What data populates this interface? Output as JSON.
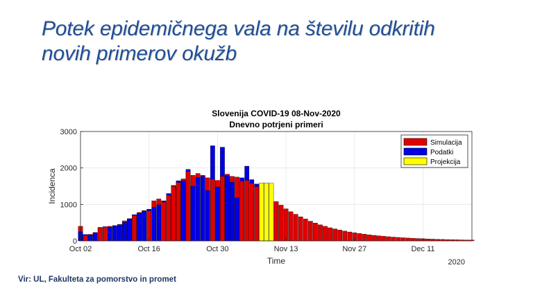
{
  "slide": {
    "title_line1": "Potek epidemičnega vala na številu odkritih",
    "title_line2": "novih primerov okužb",
    "source": "Vir: UL, Fakulteta za pomorstvo in promet"
  },
  "colors": {
    "title": "#1f4e96",
    "simulacija": "#e00000",
    "podatki": "#0000e6",
    "projekcija": "#ffff00",
    "grid": "#e6e6e6"
  },
  "chart_data": {
    "type": "bar",
    "title": "Slovenija COVID-19 08-Nov-2020",
    "subtitle": "Dnevno potrjeni primeri",
    "xlabel": "Time",
    "ylabel": "Incidenca",
    "ylim": [
      0,
      3000
    ],
    "yticks": [
      "0",
      "1000",
      "2000",
      "3000"
    ],
    "xlim_days": [
      0,
      80
    ],
    "xticks": [
      {
        "day": 0,
        "label": "Oct 02"
      },
      {
        "day": 14,
        "label": "Oct 16"
      },
      {
        "day": 28,
        "label": "Oct 30"
      },
      {
        "day": 42,
        "label": "Nov 13"
      },
      {
        "day": 56,
        "label": "Nov 27"
      },
      {
        "day": 70,
        "label": "Dec 11"
      }
    ],
    "year_label": "2020",
    "grid": true,
    "legend_position": "top-right",
    "legend": [
      "Simulacija",
      "Podatki",
      "Projekcija"
    ],
    "podatki": [
      250,
      175,
      160,
      220,
      370,
      390,
      380,
      410,
      440,
      510,
      600,
      720,
      760,
      820,
      870,
      920,
      990,
      1100,
      1300,
      1520,
      1650,
      1650,
      1960,
      1500,
      1740,
      1770,
      1380,
      2610,
      1480,
      2570,
      1790,
      1610,
      1180,
      1730,
      2050,
      1680,
      1560
    ],
    "simulacija": [
      400,
      150,
      180,
      230,
      360,
      380,
      400,
      420,
      450,
      550,
      610,
      700,
      780,
      830,
      820,
      1100,
      1150,
      1060,
      1250,
      1500,
      1600,
      1700,
      1900,
      1800,
      1850,
      1800,
      1730,
      1690,
      1660,
      1770,
      1830,
      1770,
      1750,
      1640,
      1660,
      1580,
      1490
    ],
    "projekcija": [
      1590,
      1590,
      1580
    ],
    "simulacija_future": [
      1080,
      980,
      880,
      800,
      730,
      660,
      600,
      540,
      490,
      440,
      400,
      360,
      330,
      300,
      270,
      245,
      222,
      202,
      184,
      167,
      152,
      138,
      126,
      114,
      104,
      95,
      86,
      78,
      71,
      65,
      59,
      53,
      48,
      44,
      40,
      36,
      33,
      30,
      27,
      25,
      23
    ]
  }
}
